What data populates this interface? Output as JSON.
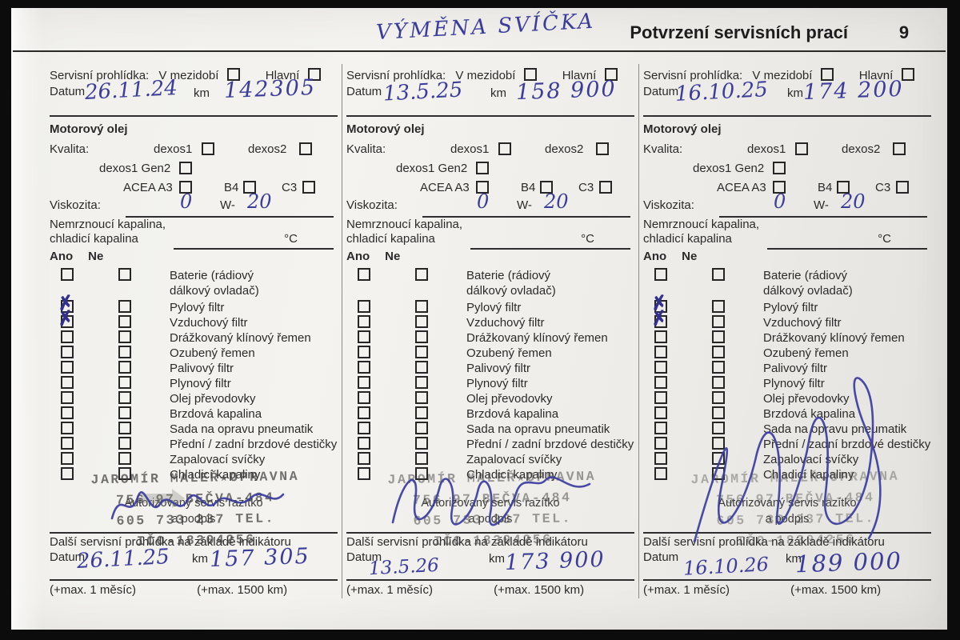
{
  "page": {
    "handwritten_title": "VÝMĚNA SVÍČKA",
    "title": "Potvrzení servisních prací",
    "page_number": "9"
  },
  "labels": {
    "service_inspection": "Servisní prohlídka:",
    "interim": "V mezidobí",
    "main": "Hlavní",
    "date": "Datum",
    "km": "km",
    "engine_oil": "Motorový olej",
    "quality": "Kvalita:",
    "dexos1": "dexos1",
    "dexos2": "dexos2",
    "dexos1_gen2": "dexos1 Gen2",
    "acea_a3": "ACEA A3",
    "b4": "B4",
    "c3": "C3",
    "viscosity": "Viskozita:",
    "w_prefix": "W-",
    "antifreeze_line1": "Nemrznoucí kapalina,",
    "antifreeze_line2": "chladicí kapalina",
    "celsius": "°C",
    "yes": "Ano",
    "no": "Ne",
    "checklist": [
      "Baterie (rádiový\ndálkový ovladač)",
      "Pylový filtr",
      "Vzduchový filtr",
      "Drážkovaný klínový řemen",
      "Ozubený řemen",
      "Palivový filtr",
      "Plynový filtr",
      "Olej převodovky",
      "Brzdová kapalina",
      "Sada na opravu pneumatik",
      "Přední / zadní brzdové destičky",
      "Zapalovací svíčky",
      "Chladicí kapaliny"
    ],
    "stamp_caption_line1": "Autorizovaný servis razítko",
    "stamp_caption_line2": "a podpis",
    "stamp": {
      "line1": "JAROMÍR MALEŘ★OPRAVNA",
      "line2": "756 97 BEČVA-484",
      "line3": "605 733 237 TEL.",
      "line4": "IČO-18304256"
    },
    "next_inspection": "Další servisní prohlídka na základě indikátoru",
    "max_month": "(+max. 1 měsíc)",
    "max_km": "(+max. 1500 km)"
  },
  "columns": [
    {
      "date": "26.11.24",
      "km": "142305",
      "viscosity_first": "0",
      "viscosity_second": "20",
      "ano_checked": [
        false,
        true,
        true,
        false,
        false,
        false,
        false,
        false,
        false,
        false,
        false,
        false,
        false
      ],
      "ne_checked": [
        false,
        false,
        false,
        false,
        false,
        false,
        false,
        false,
        false,
        false,
        false,
        false,
        false
      ],
      "next_date": "26.11.25",
      "next_km": "157 305"
    },
    {
      "date": "13.5.25",
      "km": "158 900",
      "viscosity_first": "0",
      "viscosity_second": "20",
      "ano_checked": [
        false,
        false,
        false,
        false,
        false,
        false,
        false,
        false,
        false,
        false,
        false,
        false,
        false
      ],
      "ne_checked": [
        false,
        false,
        false,
        false,
        false,
        false,
        false,
        false,
        false,
        false,
        false,
        false,
        false
      ],
      "next_date": "13.5.26",
      "next_km": "173 900"
    },
    {
      "date": "16.10.25",
      "km": "174 200",
      "viscosity_first": "0",
      "viscosity_second": "20",
      "ano_checked": [
        false,
        true,
        true,
        false,
        false,
        false,
        false,
        false,
        false,
        false,
        false,
        false,
        false
      ],
      "ne_checked": [
        false,
        false,
        false,
        false,
        false,
        false,
        false,
        false,
        false,
        false,
        false,
        false,
        false
      ],
      "next_date": "16.10.26",
      "next_km": "189 000"
    }
  ]
}
